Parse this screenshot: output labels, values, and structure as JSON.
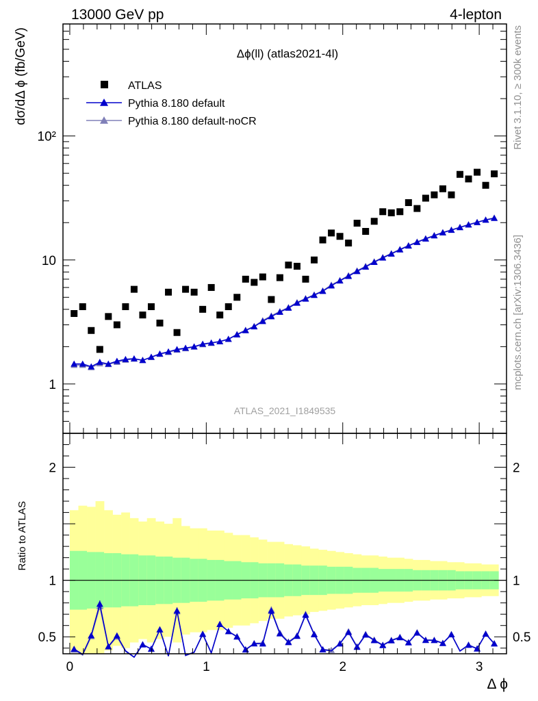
{
  "header": {
    "left": "13000 GeV pp",
    "right": "4-lepton"
  },
  "side_labels": {
    "rivet": "Rivet 3.1.10, ≥ 300k events",
    "mcplots": "mcplots.cern.ch [arXiv:1306.3436]"
  },
  "chart_data": {
    "type": "scatter",
    "title": "Δϕ(ll) (atlas2021-4l)",
    "analysis_label": "ATLAS_2021_I1849535",
    "xlabel": "Δ ϕ",
    "ylabel": "dσ/dΔ ϕ (fb/GeV)",
    "ratio_ylabel": "Ratio to ATLAS",
    "xlim": [
      -0.05,
      3.2
    ],
    "ylim": [
      0.4,
      800
    ],
    "yscale": "log",
    "ratio_ylim": [
      0.35,
      2.3
    ],
    "x_tick_labels": [
      "0",
      "1",
      "2",
      "3"
    ],
    "y_tick_labels": [
      "1",
      "10",
      "10²"
    ],
    "ratio_tick_labels": [
      "0.5",
      "1",
      "2"
    ],
    "legend_position": "top-left",
    "x": [
      0.0314,
      0.0942,
      0.157,
      0.2199,
      0.2827,
      0.3456,
      0.4084,
      0.4712,
      0.5341,
      0.5969,
      0.6597,
      0.7226,
      0.7854,
      0.8482,
      0.9111,
      0.9739,
      1.0367,
      1.0996,
      1.1624,
      1.2252,
      1.2881,
      1.3509,
      1.4137,
      1.4766,
      1.5394,
      1.6022,
      1.6651,
      1.7279,
      1.7907,
      1.8536,
      1.9164,
      1.9792,
      2.0421,
      2.1049,
      2.1677,
      2.2306,
      2.2934,
      2.3562,
      2.4191,
      2.4819,
      2.5447,
      2.6076,
      2.6704,
      2.7332,
      2.7961,
      2.8589,
      2.9217,
      2.9846,
      3.0474,
      3.1102
    ],
    "series": [
      {
        "name": "ATLAS",
        "marker": "square",
        "color": "#000000",
        "values": [
          3.7,
          4.2,
          2.7,
          1.9,
          3.5,
          3.0,
          4.2,
          5.8,
          3.6,
          4.2,
          3.1,
          5.5,
          2.6,
          5.8,
          5.5,
          4.0,
          6.0,
          3.6,
          4.2,
          5.0,
          7.0,
          6.6,
          7.3,
          4.8,
          7.2,
          9.1,
          8.9,
          7.0,
          10.0,
          14.5,
          16.5,
          15.5,
          13.7,
          19.8,
          17.0,
          20.5,
          24.5,
          24.0,
          24.5,
          29.0,
          26.0,
          31.5,
          33.5,
          37.5,
          33.5,
          49.0,
          45.0,
          51.0,
          40.0,
          49.5
        ]
      },
      {
        "name": "Pythia 8.180 default",
        "marker": "triangle",
        "color": "#0000cc",
        "values": [
          1.45,
          1.45,
          1.38,
          1.5,
          1.45,
          1.53,
          1.58,
          1.6,
          1.55,
          1.65,
          1.75,
          1.82,
          1.9,
          1.95,
          2.0,
          2.1,
          2.15,
          2.2,
          2.3,
          2.5,
          2.7,
          2.9,
          3.2,
          3.5,
          3.8,
          4.1,
          4.5,
          4.85,
          5.2,
          5.6,
          6.2,
          6.8,
          7.4,
          8.1,
          8.8,
          9.6,
          10.4,
          11.2,
          12.1,
          13.0,
          13.9,
          14.8,
          15.7,
          16.6,
          17.4,
          18.3,
          19.2,
          20.1,
          21.0,
          21.7
        ]
      },
      {
        "name": "Pythia 8.180 default-noCR",
        "marker": "triangle",
        "color": "#8080b8",
        "values": [
          1.42,
          1.42,
          1.36,
          1.46,
          1.44,
          1.5,
          1.56,
          1.59,
          1.56,
          1.64,
          1.74,
          1.8,
          1.88,
          1.93,
          1.99,
          2.08,
          2.13,
          2.2,
          2.3,
          2.52,
          2.72,
          2.92,
          3.25,
          3.55,
          3.85,
          4.15,
          4.55,
          4.9,
          5.25,
          5.65,
          6.3,
          6.85,
          7.5,
          8.2,
          8.9,
          9.7,
          10.5,
          11.3,
          12.2,
          13.1,
          14.0,
          14.9,
          15.8,
          16.7,
          17.5,
          18.4,
          19.3,
          20.2,
          21.1,
          21.9
        ]
      }
    ],
    "band_inner_halfwidth": [
      0.26,
      0.26,
      0.25,
      0.25,
      0.24,
      0.24,
      0.23,
      0.23,
      0.22,
      0.22,
      0.21,
      0.21,
      0.2,
      0.2,
      0.19,
      0.19,
      0.18,
      0.18,
      0.17,
      0.17,
      0.16,
      0.16,
      0.15,
      0.15,
      0.15,
      0.14,
      0.14,
      0.13,
      0.13,
      0.13,
      0.12,
      0.12,
      0.12,
      0.11,
      0.11,
      0.11,
      0.1,
      0.1,
      0.1,
      0.1,
      0.09,
      0.09,
      0.09,
      0.09,
      0.09,
      0.08,
      0.08,
      0.08,
      0.08,
      0.08
    ],
    "band_outer_halfwidth": [
      0.62,
      0.66,
      0.65,
      0.7,
      0.62,
      0.58,
      0.6,
      0.55,
      0.52,
      0.55,
      0.52,
      0.5,
      0.55,
      0.48,
      0.46,
      0.46,
      0.44,
      0.44,
      0.42,
      0.4,
      0.4,
      0.38,
      0.36,
      0.34,
      0.34,
      0.32,
      0.31,
      0.3,
      0.28,
      0.27,
      0.26,
      0.25,
      0.24,
      0.23,
      0.22,
      0.22,
      0.21,
      0.2,
      0.2,
      0.19,
      0.18,
      0.18,
      0.17,
      0.17,
      0.16,
      0.16,
      0.15,
      0.15,
      0.14,
      0.14
    ],
    "band_colors": {
      "inner": "#99ff99",
      "outer": "#ffff99"
    }
  }
}
